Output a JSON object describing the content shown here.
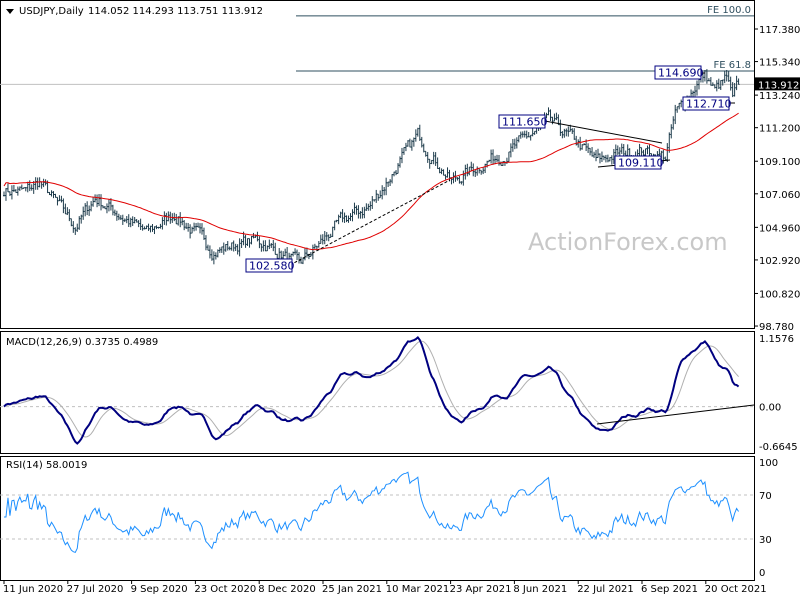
{
  "chart_data": {
    "type": "ohlc",
    "title": "USDJPY,Daily",
    "ohlc_last": "114.052 114.293 113.751 113.912",
    "current_price": "113.912",
    "price_axis_ticks": [
      "117.380",
      "115.340",
      "113.240",
      "111.200",
      "109.100",
      "107.060",
      "104.960",
      "102.920",
      "100.820",
      "98.780"
    ],
    "price_axis_range": [
      98.78,
      117.38
    ],
    "date_ticks": [
      "11 Jun 2020",
      "27 Jul 2020",
      "9 Sep 2020",
      "23 Oct 2020",
      "8 Dec 2020",
      "25 Jan 2021",
      "10 Mar 2021",
      "23 Apr 2021",
      "8 Jun 2021",
      "22 Jul 2021",
      "6 Sep 2021",
      "20 Oct 2021"
    ],
    "close_path": [
      [
        "2020-06-11",
        107.3
      ],
      [
        "2020-06-26",
        107.2
      ],
      [
        "2020-07-07",
        107.8
      ],
      [
        "2020-07-31",
        105.0
      ],
      [
        "2020-08-14",
        106.8
      ],
      [
        "2020-09-21",
        104.6
      ],
      [
        "2020-10-09",
        105.8
      ],
      [
        "2020-11-06",
        103.5
      ],
      [
        "2020-12-08",
        104.2
      ],
      [
        "2021-01-06",
        102.6
      ],
      [
        "2021-02-05",
        105.4
      ],
      [
        "2021-02-25",
        106.3
      ],
      [
        "2021-03-31",
        110.7
      ],
      [
        "2021-04-23",
        107.8
      ],
      [
        "2021-05-20",
        109.2
      ],
      [
        "2021-06-02",
        109.6
      ],
      [
        "2021-07-01",
        111.6
      ],
      [
        "2021-07-22",
        110.2
      ],
      [
        "2021-08-04",
        109.1
      ],
      [
        "2021-08-17",
        109.5
      ],
      [
        "2021-09-06",
        109.8
      ],
      [
        "2021-09-22",
        109.4
      ],
      [
        "2021-09-29",
        112.0
      ],
      [
        "2021-10-15",
        114.2
      ],
      [
        "2021-10-20",
        114.5
      ],
      [
        "2021-10-27",
        113.5
      ],
      [
        "2021-11-04",
        114.3
      ],
      [
        "2021-11-09",
        112.8
      ],
      [
        "2021-11-12",
        113.912
      ]
    ],
    "moving_average": {
      "color": "#e00000",
      "period": 55
    },
    "levels": [
      {
        "label": "FE 100.0",
        "value": 118.2
      },
      {
        "label": "FE 61.8",
        "value": 114.75
      }
    ],
    "price_labels": [
      "102.580",
      "111.650",
      "109.110",
      "114.690",
      "112.710"
    ],
    "watermark": "ActionForex.com",
    "macd": {
      "title": "MACD(12,26,9) 0.3735 0.4989",
      "ticks": [
        "1.1576",
        "0.00",
        "-0.6645"
      ],
      "range": [
        -0.6645,
        1.1576
      ],
      "line_color": "#000080",
      "signal_color": "#b0b0b0"
    },
    "rsi": {
      "title": "RSI(14) 58.0019",
      "ticks": [
        "100",
        "70",
        "30",
        "0"
      ],
      "range": [
        0,
        100
      ],
      "color": "#1e90ff"
    },
    "bar_color": "#1c3a4a"
  }
}
